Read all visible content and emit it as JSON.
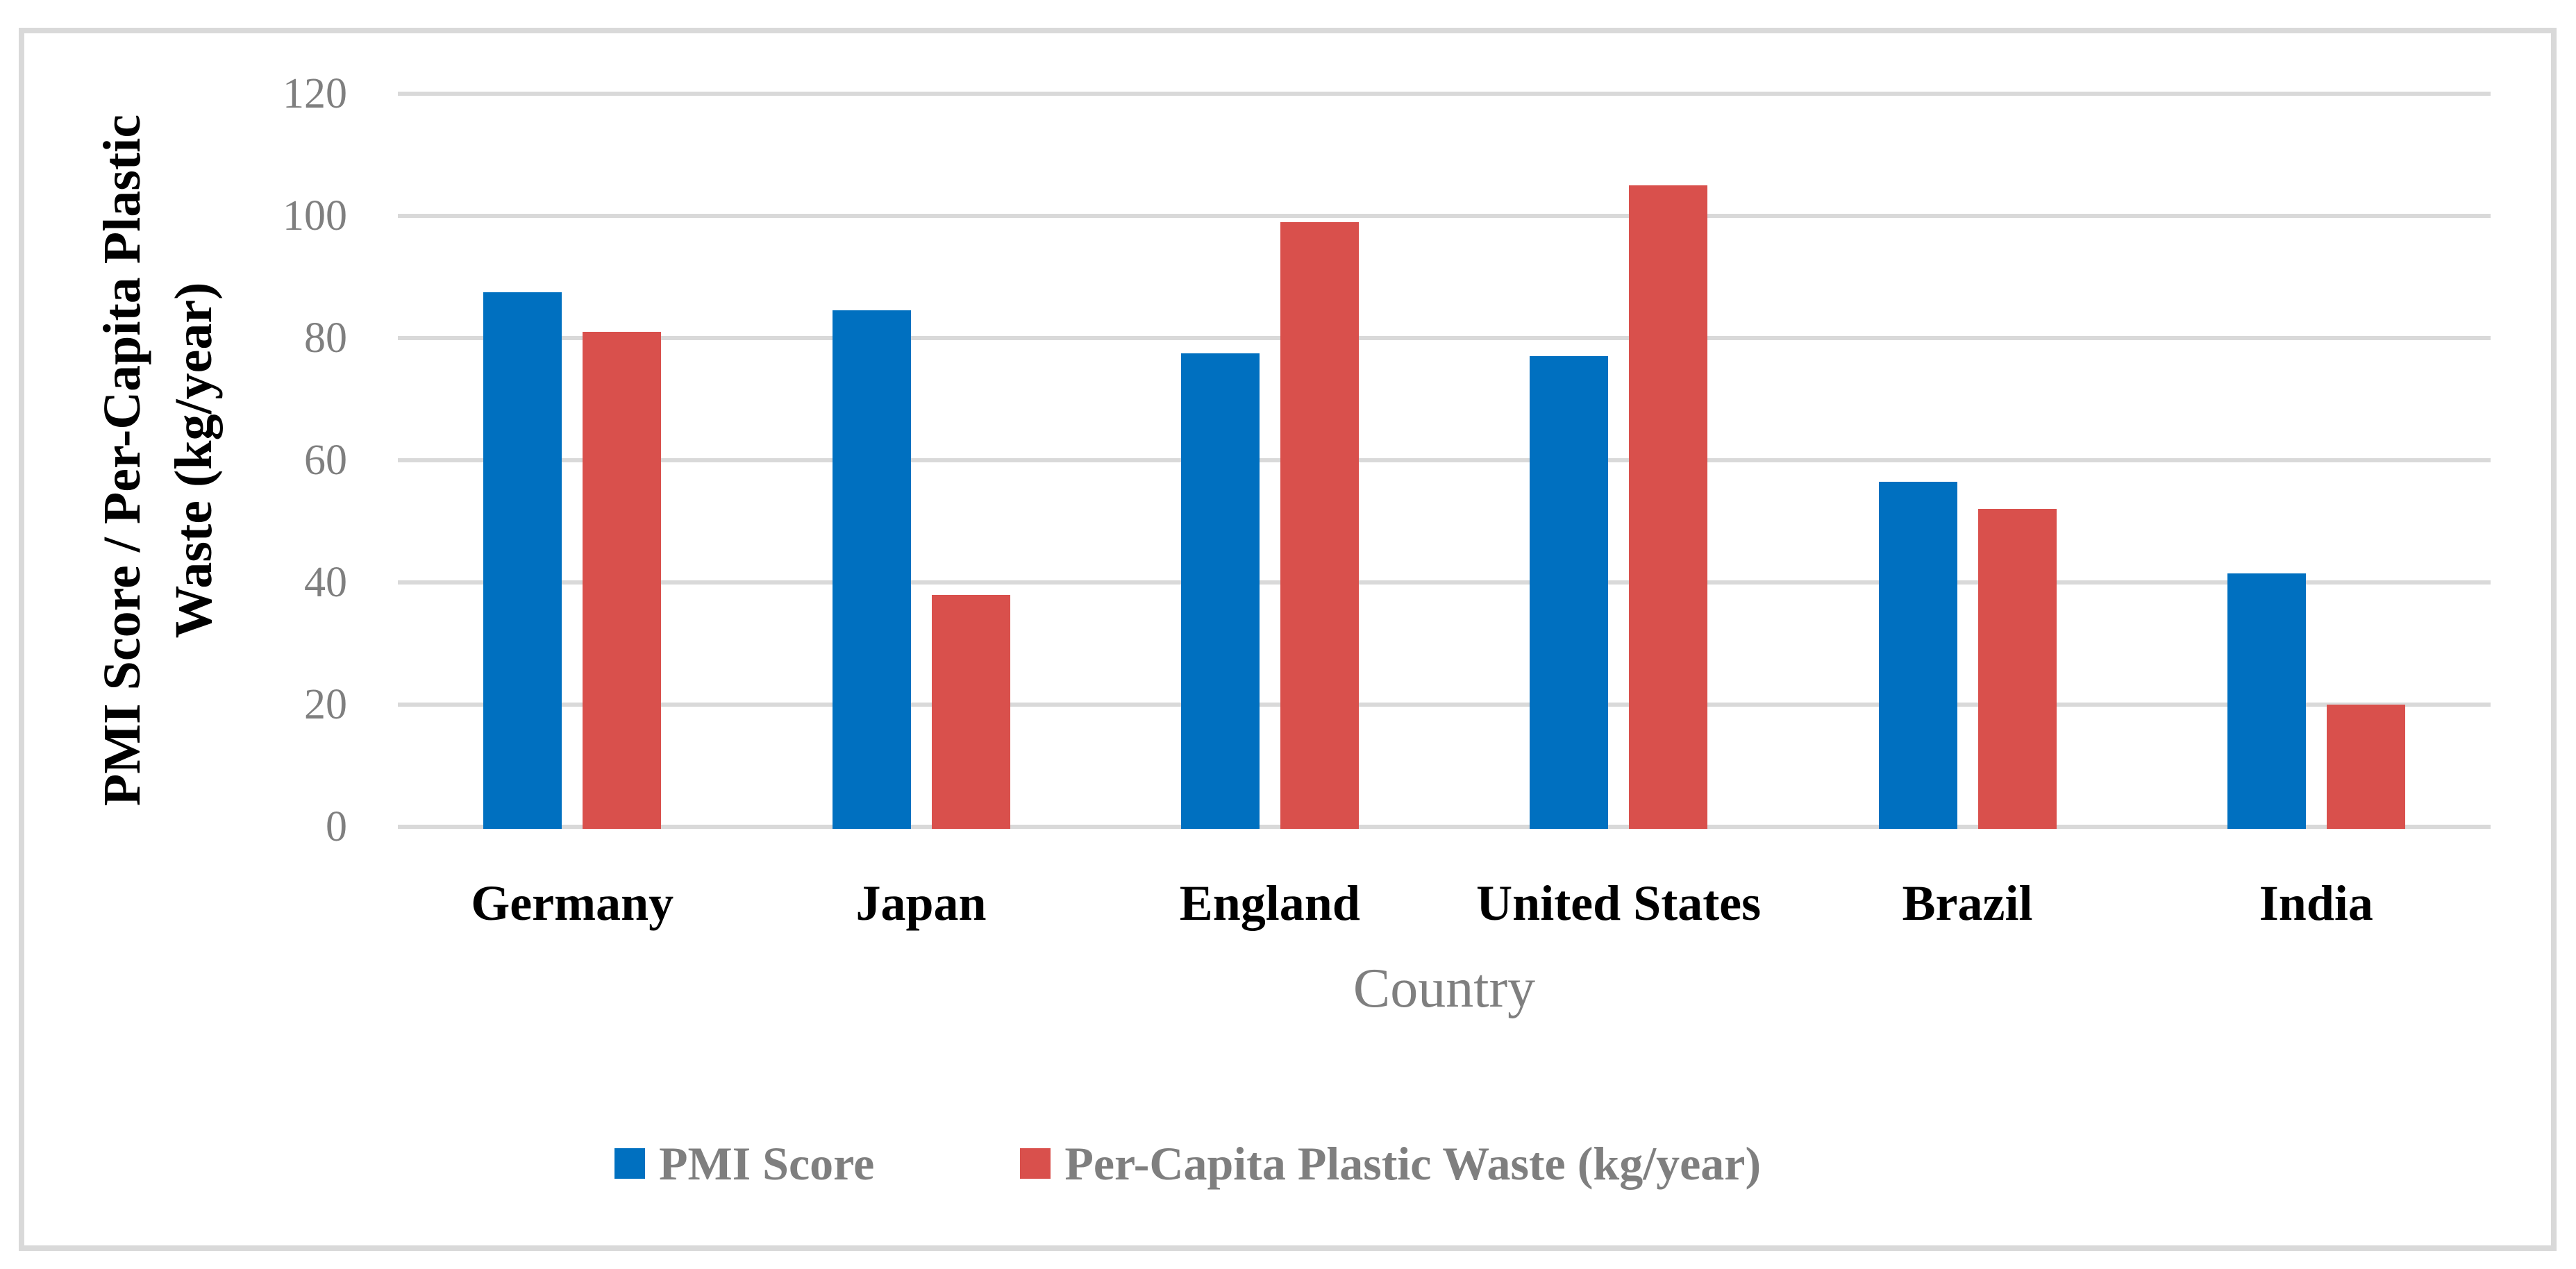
{
  "figure": {
    "background": "#FFFFFF",
    "border_color": "#D9D9D9"
  },
  "chart_data": {
    "type": "bar",
    "title": "",
    "categories": [
      "Germany",
      "Japan",
      "England",
      "United States",
      "Brazil",
      "India"
    ],
    "series": [
      {
        "name": "PMI Score",
        "color": "#0070C0",
        "values": [
          87.5,
          84.5,
          77.5,
          77,
          56.5,
          41.5
        ]
      },
      {
        "name": "Per-Capita Plastic Waste (kg/year)",
        "color": "#D9504C",
        "values": [
          81,
          38,
          99,
          105,
          52,
          20
        ]
      }
    ],
    "xlabel": "Country",
    "ylabel": "PMI Score / Per-Capita Plastic Waste (kg/year)",
    "ylabel_lines": [
      "PMI Score / Per-Capita Plastic",
      "Waste (kg/year)"
    ],
    "ylim": [
      0,
      120
    ],
    "yticks": [
      0,
      20,
      40,
      60,
      80,
      100,
      120
    ],
    "grid": "horizontal",
    "gridline_color": "#D9D9D9",
    "axis_text_color": "#7F7F7F",
    "category_text_color": "#000000",
    "legend_position": "bottom"
  }
}
